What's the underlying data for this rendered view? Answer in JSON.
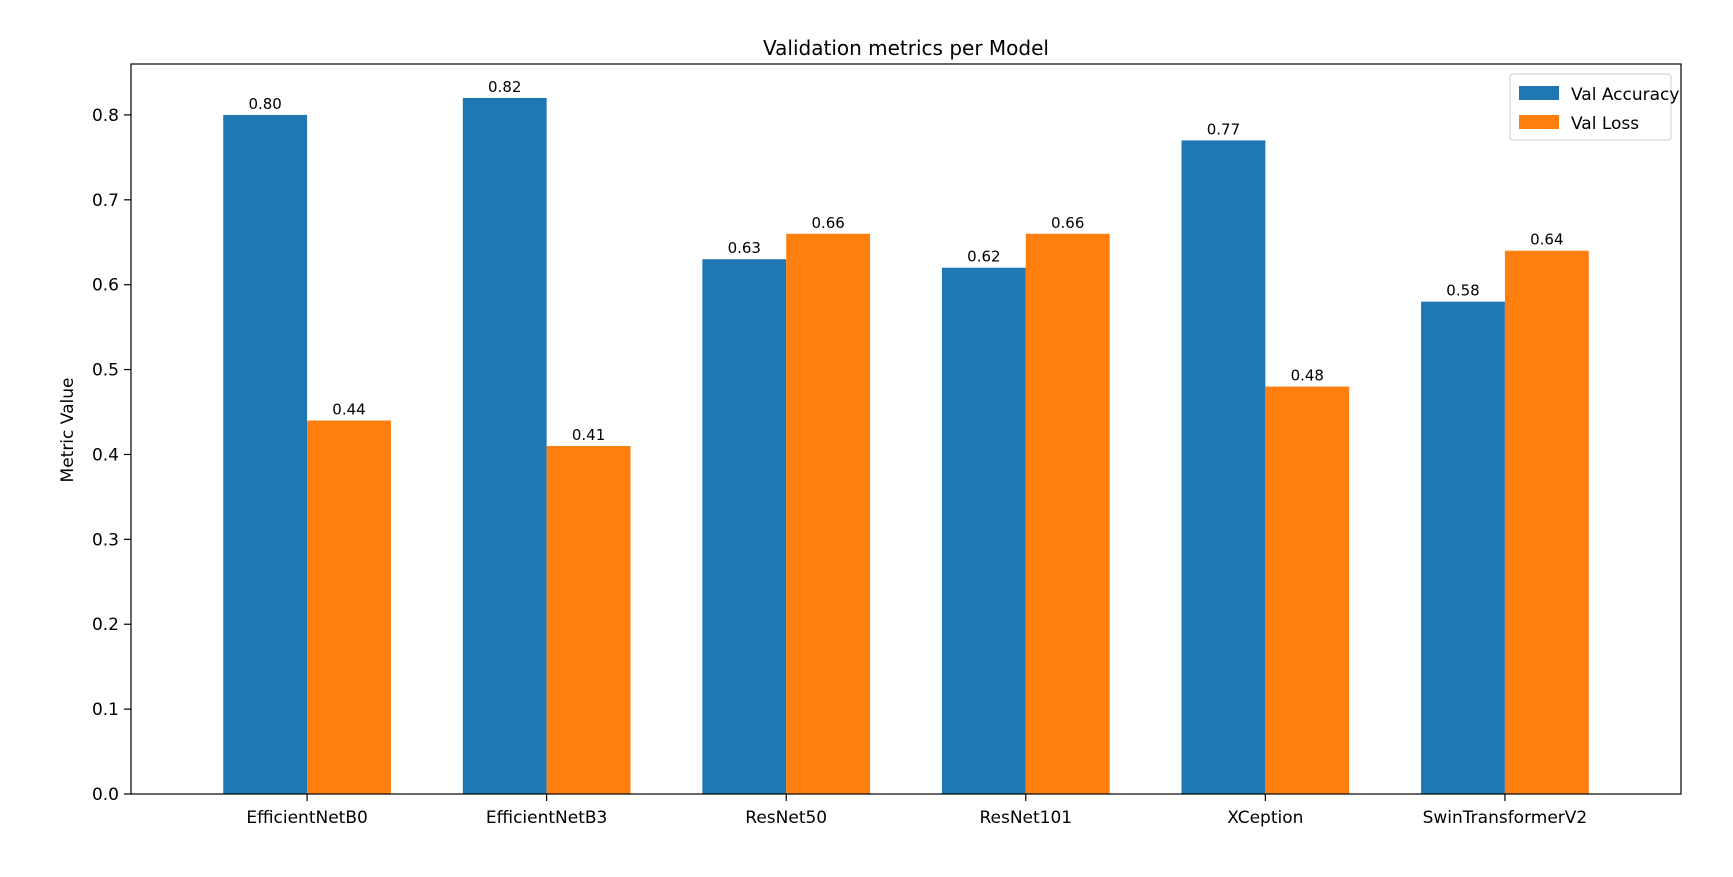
{
  "chart_data": {
    "type": "bar",
    "title": "Validation metrics per Model",
    "xlabel": "",
    "ylabel": "Metric Value",
    "ylim": [
      0,
      0.86
    ],
    "yticks": [
      "0.0",
      "0.1",
      "0.2",
      "0.3",
      "0.4",
      "0.5",
      "0.6",
      "0.7",
      "0.8"
    ],
    "categories": [
      "EfficientNetB0",
      "EfficientNetB3",
      "ResNet50",
      "ResNet101",
      "XCeption",
      "SwinTransformerV2"
    ],
    "series": [
      {
        "name": "Val Accuracy",
        "color": "#1f77b4",
        "values": [
          0.8,
          0.82,
          0.63,
          0.62,
          0.77,
          0.58
        ],
        "labels": [
          "0.80",
          "0.82",
          "0.63",
          "0.62",
          "0.77",
          "0.58"
        ]
      },
      {
        "name": "Val Loss",
        "color": "#ff7f0e",
        "values": [
          0.44,
          0.41,
          0.66,
          0.66,
          0.48,
          0.64
        ],
        "labels": [
          "0.44",
          "0.41",
          "0.66",
          "0.66",
          "0.48",
          "0.64"
        ]
      }
    ],
    "legend_position": "top-right",
    "grid": false
  }
}
